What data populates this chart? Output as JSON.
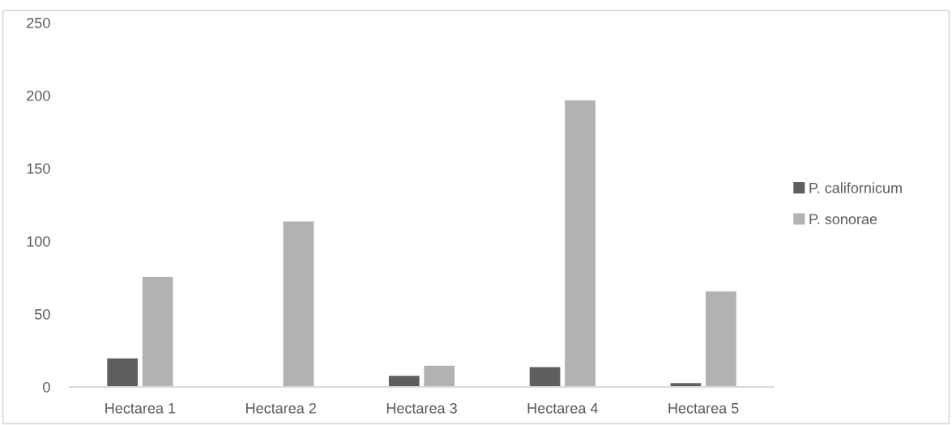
{
  "chart_data": {
    "type": "bar",
    "categories": [
      "Hectarea 1",
      "Hectarea 2",
      "Hectarea 3",
      "Hectarea 4",
      "Hectarea 5"
    ],
    "series": [
      {
        "name": "P. californicum",
        "color": "#5f5f5f",
        "values": [
          20,
          null,
          8,
          14,
          3
        ]
      },
      {
        "name": "P. sonorae",
        "color": "#b2b2b2",
        "values": [
          76,
          114,
          15,
          197,
          66
        ]
      }
    ],
    "ylim": [
      0,
      250
    ],
    "yticks": [
      0,
      50,
      100,
      150,
      200,
      250
    ],
    "grid": false,
    "legend": "right"
  }
}
